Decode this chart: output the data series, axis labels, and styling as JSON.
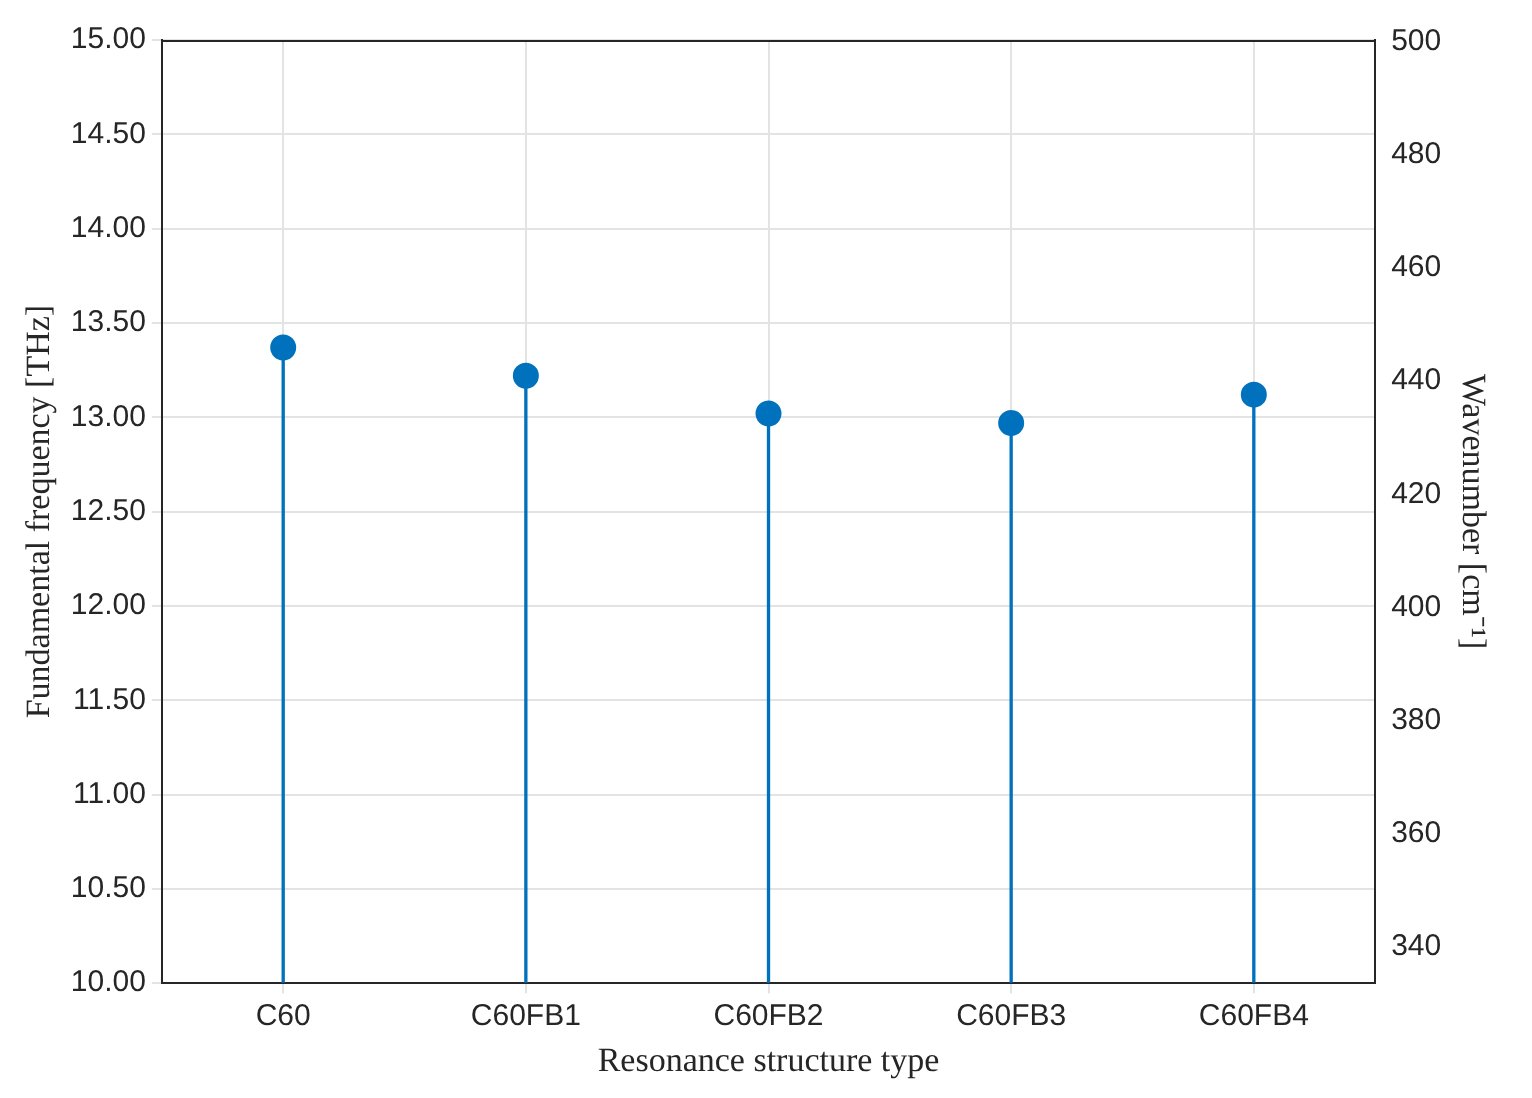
{
  "chart_data": {
    "type": "lollipop",
    "xlabel": "Resonance structure type",
    "ylabel": "Fundamental frequency [THz]",
    "y2label": "Wavenumber [cm⁻¹]",
    "categories": [
      "C60",
      "C60FB1",
      "C60FB2",
      "C60FB3",
      "C60FB4"
    ],
    "series": [
      {
        "color": "#0072bd",
        "values": [
          13.37,
          13.22,
          13.02,
          12.97,
          13.12
        ]
      }
    ],
    "ylim": [
      10,
      15
    ],
    "yticks": [
      {
        "value": 10,
        "label": "10.00"
      },
      {
        "value": 10.5,
        "label": "10.50"
      },
      {
        "value": 11,
        "label": "11.00"
      },
      {
        "value": 11.5,
        "label": "11.50"
      },
      {
        "value": 12,
        "label": "12.00"
      },
      {
        "value": 12.5,
        "label": "12.50"
      },
      {
        "value": 13,
        "label": "13.00"
      },
      {
        "value": 13.5,
        "label": "13.50"
      },
      {
        "value": 14,
        "label": "14.00"
      },
      {
        "value": 14.5,
        "label": "14.50"
      },
      {
        "value": 15,
        "label": "15.00"
      }
    ],
    "y2lim": [
      333.6,
      500.3
    ],
    "y2ticks": [
      340,
      360,
      380,
      400,
      420,
      440,
      460,
      480,
      500
    ],
    "grid": true,
    "marker": "circle",
    "legend": false
  }
}
